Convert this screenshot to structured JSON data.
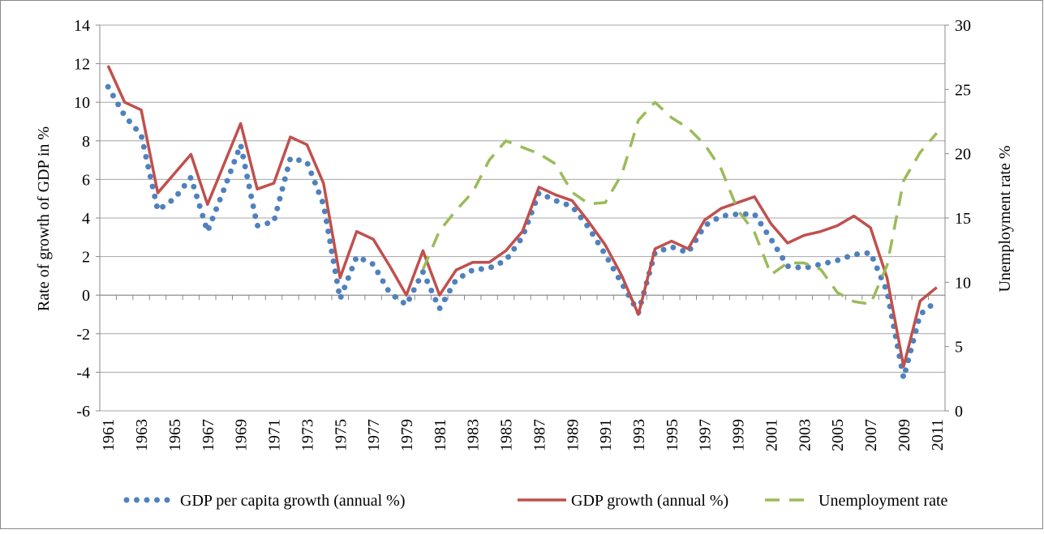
{
  "chart_data": {
    "type": "line",
    "y_label": "Rate of growth of GDP in %",
    "y2_label": "Unemployment rate %",
    "categories": [
      "1961",
      null,
      "1963",
      null,
      "1965",
      null,
      "1967",
      null,
      "1969",
      null,
      "1971",
      null,
      "1973",
      null,
      "1975",
      null,
      "1977",
      null,
      "1979",
      null,
      "1981",
      null,
      "1983",
      null,
      "1985",
      null,
      "1987",
      null,
      "1989",
      null,
      "1991",
      null,
      "1993",
      null,
      "1995",
      null,
      "1997",
      null,
      "1999",
      null,
      "2001",
      null,
      "2003",
      null,
      "2005",
      null,
      "2007",
      null,
      "2009",
      null,
      "2011"
    ],
    "series": [
      {
        "name": "GDP per capita growth (annual %)",
        "color": "#4f81bd",
        "style": "dotted",
        "values": [
          10.8,
          9.3,
          8.3,
          4.4,
          5.0,
          6.1,
          3.3,
          5.5,
          7.8,
          3.6,
          3.8,
          7.1,
          6.9,
          4.7,
          -0.2,
          2.0,
          1.6,
          0.1,
          -0.5,
          1.2,
          -0.7,
          0.8,
          1.3,
          1.4,
          1.8,
          3.0,
          5.3,
          4.9,
          4.6,
          3.5,
          2.1,
          0.6,
          -0.9,
          2.2,
          2.5,
          2.2,
          3.6,
          4.1,
          4.2,
          4.2,
          2.9,
          1.5,
          1.4,
          1.6,
          1.8,
          2.1,
          2.2,
          0.2,
          -4.3,
          -1.0,
          -0.3
        ]
      },
      {
        "name": "GDP growth (annual %)",
        "color": "#c0504d",
        "style": "solid",
        "values": [
          11.9,
          10.0,
          9.6,
          5.3,
          6.3,
          7.3,
          4.7,
          6.8,
          8.9,
          5.5,
          5.8,
          8.2,
          7.8,
          5.8,
          0.9,
          3.3,
          2.9,
          1.5,
          0.0,
          2.3,
          0.0,
          1.3,
          1.7,
          1.7,
          2.3,
          3.3,
          5.6,
          5.2,
          4.9,
          3.8,
          2.6,
          1.0,
          -1.0,
          2.4,
          2.8,
          2.4,
          3.9,
          4.5,
          4.8,
          5.1,
          3.7,
          2.7,
          3.1,
          3.3,
          3.6,
          4.1,
          3.5,
          0.9,
          -3.7,
          -0.3,
          0.4
        ]
      },
      {
        "name": "Unemployment rate",
        "color": "#9bbb59",
        "style": "dashed",
        "axis": "y2",
        "values": [
          null,
          null,
          null,
          null,
          null,
          null,
          null,
          null,
          null,
          null,
          null,
          null,
          null,
          null,
          null,
          null,
          null,
          null,
          null,
          11.0,
          14.0,
          15.6,
          17.0,
          19.5,
          21.0,
          20.5,
          20.0,
          19.2,
          17.0,
          16.1,
          16.2,
          18.4,
          22.6,
          24.0,
          22.8,
          22.0,
          20.7,
          18.8,
          15.6,
          13.9,
          10.6,
          11.5,
          11.5,
          11.0,
          9.2,
          8.5,
          8.3,
          11.3,
          17.9,
          20.1,
          21.6
        ]
      }
    ],
    "ylim": [
      -6,
      14
    ],
    "yticks": [
      -6,
      -4,
      -2,
      0,
      2,
      4,
      6,
      8,
      10,
      12,
      14
    ],
    "y2lim": [
      0,
      30
    ],
    "y2ticks": [
      0,
      5,
      10,
      15,
      20,
      25,
      30
    ],
    "grid": true,
    "legend": "bottom"
  }
}
